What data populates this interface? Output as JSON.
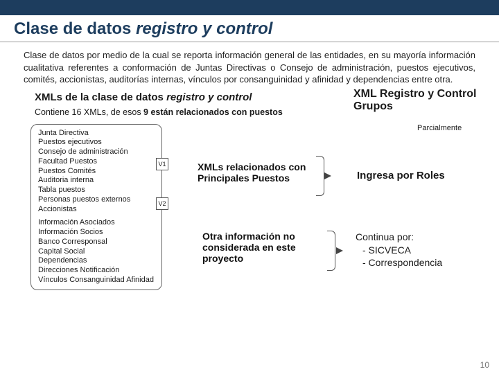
{
  "colors": {
    "header_bar": "#1d3d5e",
    "title_color": "#1d3d5e",
    "text": "#1a1a1a",
    "page_num": "#777777"
  },
  "title_plain": "Clase de datos ",
  "title_ital": "registro y control",
  "intro": "Clase de datos por medio de la cual se reporta información general de las entidades, en su mayoría información cualitativa referentes a conformación de Juntas Directivas o Consejo de administración, puestos ejecutivos, comités, accionistas, auditorías internas, vínculos por consanguinidad y afinidad y dependencias entre otra.",
  "subtitle_plain": "XMLs de la clase de datos ",
  "subtitle_ital": "registro y control",
  "sub2_a": "Contiene 16 XMLs, de esos ",
  "sub2_b": "9 están relacionados con puestos",
  "xml_group1": [
    "Junta Directiva",
    "Puestos ejecutivos",
    "Consejo de administración",
    "Facultad Puestos",
    "Puestos Comités",
    "Auditoria interna",
    "Tabla puestos",
    "Personas puestos externos",
    "Accionistas"
  ],
  "xml_group2": [
    "Información Asociados",
    "Información Socios",
    "Banco Corresponsal",
    "Capital Social",
    "Dependencias",
    "Direcciones Notificación",
    "Vínculos Consanguinidad Afinidad"
  ],
  "v1": "V1",
  "v2": "V2",
  "xmlrel": "XMLs relacionados con Principales Puestos",
  "otra": "Otra información no considerada en este proyecto",
  "right_head": "XML Registro y Control Grupos",
  "parc": "Parcialmente",
  "ingresa": "Ingresa por Roles",
  "continua_head": "Continua por:",
  "continua_items": [
    "SICVECA",
    "Correspondencia"
  ],
  "page_num": "10"
}
